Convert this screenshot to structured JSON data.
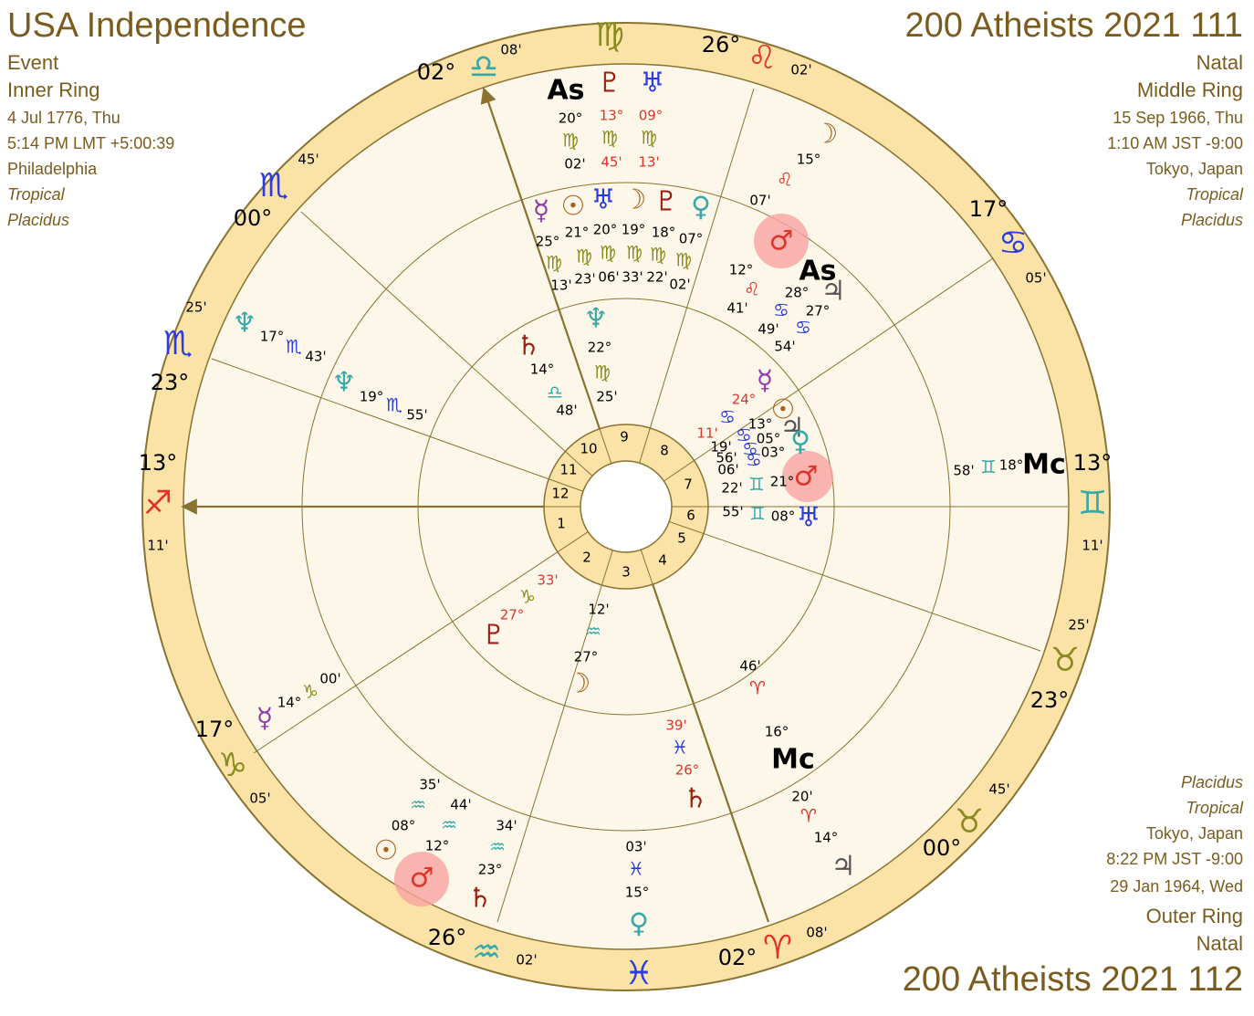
{
  "header_left": {
    "title": "USA Independence",
    "lines": [
      "Event",
      "Inner Ring",
      "4 Jul 1776, Thu",
      "5:14 PM LMT +5:00:39",
      "Philadelphia",
      "Tropical",
      "Placidus"
    ]
  },
  "header_right": {
    "title": "200 Atheists 2021 111",
    "lines": [
      "Natal",
      "Middle Ring",
      "15 Sep 1966, Thu",
      "1:10 AM JST -9:00",
      "Tokyo, Japan",
      "Tropical",
      "Placidus"
    ]
  },
  "footer_right": {
    "lines": [
      "Placidus",
      "Tropical",
      "Tokyo, Japan",
      "8:22 PM JST -9:00",
      "29 Jan 1964, Wed",
      "Outer Ring",
      "Natal"
    ],
    "title": "200 Atheists 2021 112"
  },
  "wheel": {
    "cusp_labels": [
      "02°",
      "♎",
      "08'",
      "♍",
      "26°",
      "♌",
      "02'",
      "17°",
      "♋",
      "05'",
      "13°",
      "♊",
      "11'",
      "25'",
      "♉",
      "23°",
      "45'",
      "♉",
      "00°",
      "08'",
      "♈",
      "02°",
      "♓",
      "02'",
      "♒",
      "26°",
      "05'",
      "♑",
      "17°",
      "11'",
      "♐",
      "13°",
      "23°",
      "♏",
      "25'",
      "00°",
      "♏",
      "45'"
    ],
    "house_numbers": [
      1,
      2,
      3,
      4,
      5,
      6,
      7,
      8,
      9,
      10,
      11,
      12
    ],
    "planet_labels": [
      "As",
      "20°",
      "♍",
      "02'",
      "♇",
      "13°",
      "♍",
      "45'",
      "♅",
      "09°",
      "♍",
      "13'",
      "☽",
      "15°",
      "♌",
      "07'",
      "♂",
      "12°",
      "♌",
      "41'",
      "As",
      "28°",
      "♋",
      "49'",
      "♃",
      "27°",
      "♋",
      "54'",
      "♆",
      "17°",
      "♏",
      "43'",
      "Mc",
      "18°",
      "♊",
      "58'",
      "46'",
      "♈",
      "16°",
      "Mc",
      "20'",
      "♈",
      "14°",
      "♃",
      "03'",
      "♓",
      "15°",
      "♀",
      "35'",
      "♒",
      "08°",
      "☉",
      "44'",
      "♒",
      "12°",
      "♂",
      "34'",
      "♒",
      "23°",
      "♄",
      "☿",
      "14°",
      "♑",
      "00'",
      "☿",
      "25°",
      "♍",
      "13'",
      "☉",
      "21°",
      "♍",
      "23'",
      "♅",
      "20°",
      "♍",
      "06'",
      "☽",
      "19°",
      "♍",
      "33'",
      "♇",
      "18°",
      "♍",
      "22'",
      "♀",
      "07°",
      "♍",
      "02'",
      "♆",
      "19°",
      "♏",
      "55'",
      "♄",
      "14°",
      "♎",
      "48'",
      "♆",
      "22°",
      "♍",
      "25'",
      "☿",
      "24°",
      "♋",
      "11'",
      "☉",
      "13°",
      "♋",
      "19'",
      "♃",
      "05°",
      "♋",
      "56'",
      "♀",
      "03°",
      "♋",
      "06'",
      "♂",
      "21°",
      "♊",
      "22'",
      "♅",
      "08°",
      "♊",
      "55'",
      "33'",
      "♑",
      "27°",
      "♇",
      "12'",
      "♒",
      "27°",
      "☽",
      "39'",
      "♓",
      "26°",
      "♄"
    ]
  }
}
